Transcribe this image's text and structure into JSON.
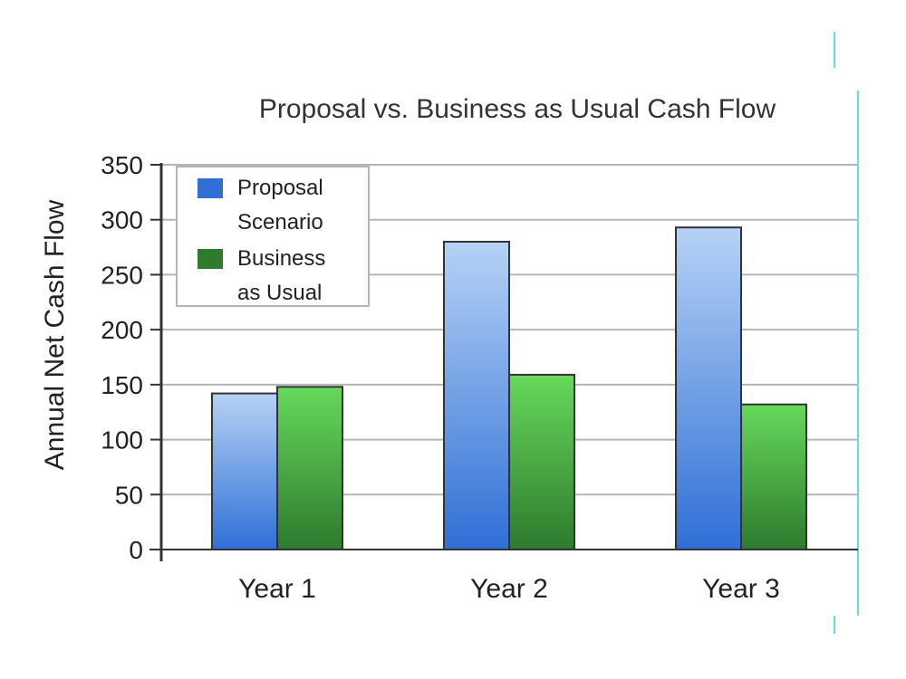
{
  "chart_data": {
    "type": "bar",
    "title": "Proposal vs. Business as Usual Cash Flow",
    "xlabel": "",
    "ylabel": "Annual Net Cash Flow",
    "categories": [
      "Year 1",
      "Year 2",
      "Year 3"
    ],
    "yticks": [
      "0",
      "50",
      "100",
      "150",
      "200",
      "250",
      "300",
      "350"
    ],
    "ylim": [
      0,
      350
    ],
    "grid": true,
    "legend_position": "top-left",
    "series": [
      {
        "name": "Proposal Scenario",
        "legend_lines": [
          "Proposal",
          "Scenario"
        ],
        "values": [
          142,
          280,
          293
        ],
        "color_top": "#b6d2f5",
        "color_bottom": "#2f6fd6"
      },
      {
        "name": "Business as Usual",
        "legend_lines": [
          "Business",
          "as Usual"
        ],
        "values": [
          148,
          159,
          132
        ],
        "color_top": "#66d95a",
        "color_bottom": "#2e7a2e"
      }
    ]
  },
  "colors": {
    "gridline": "#b5b5b5",
    "axis": "#333333",
    "accent_line": "#5fe0e8"
  }
}
